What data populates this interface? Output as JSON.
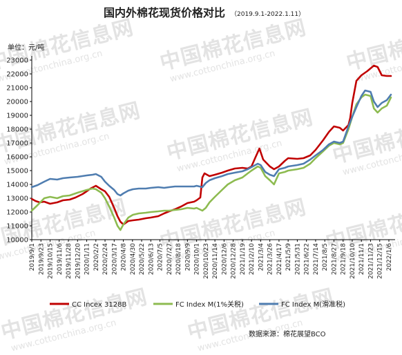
{
  "watermark": {
    "cn": "中国棉花信息网",
    "en": "www.cottonchina.org.cn"
  },
  "chart_data": {
    "type": "line",
    "title": "国内外棉花现货价格对比",
    "subtitle": "（2019.9.1-2022.1.11）",
    "unit_label": "单位：元/吨",
    "ylim": [
      10000,
      23000
    ],
    "y_ticks": [
      10000,
      11000,
      12000,
      13000,
      14000,
      15000,
      16000,
      17000,
      18000,
      19000,
      20000,
      21000,
      22000,
      23000
    ],
    "x_ticks": [
      "2019/9/1",
      "2019/9/23",
      "2019/10/15",
      "2019/11/6",
      "2019/11/28",
      "2019/12/20",
      "2020/1/11",
      "2020/2/2",
      "2020/2/24",
      "2020/3/17",
      "2020/4/8",
      "2020/4/30",
      "2020/5/22",
      "2020/6/13",
      "2020/7/5",
      "2020/7/27",
      "2020/8/18",
      "2020/9/9",
      "2020/10/1",
      "2020/10/23",
      "2020/11/14",
      "2020/12/6",
      "2020/12/28",
      "2021/1/19",
      "2021/2/10",
      "2021/3/4",
      "2021/3/26",
      "2021/4/17",
      "2021/5/9",
      "2021/5/31",
      "2021/6/22",
      "2021/7/14",
      "2021/8/5",
      "2021/8/27",
      "2021/9/18",
      "2021/10/10",
      "2021/11/1",
      "2021/11/23",
      "2021/12/15",
      "2022/1/6"
    ],
    "x_range": [
      "2019/9/1",
      "2022/1/11"
    ],
    "grid": false,
    "legend_position": "bottom",
    "series": [
      {
        "name": "CC Incex 3128B",
        "color": "#c00000",
        "points": [
          [
            "2019/9/1",
            12950
          ],
          [
            "2019/9/10",
            12800
          ],
          [
            "2019/9/20",
            12700
          ],
          [
            "2019/10/1",
            12750
          ],
          [
            "2019/10/15",
            12600
          ],
          [
            "2019/11/1",
            12700
          ],
          [
            "2019/11/15",
            12850
          ],
          [
            "2019/12/1",
            12900
          ],
          [
            "2019/12/15",
            13050
          ],
          [
            "2020/1/1",
            13300
          ],
          [
            "2020/1/11",
            13500
          ],
          [
            "2020/1/20",
            13700
          ],
          [
            "2020/2/2",
            13900
          ],
          [
            "2020/2/15",
            13650
          ],
          [
            "2020/2/24",
            13500
          ],
          [
            "2020/3/5",
            13100
          ],
          [
            "2020/3/17",
            12300
          ],
          [
            "2020/3/25",
            11700
          ],
          [
            "2020/4/1",
            11300
          ],
          [
            "2020/4/8",
            11100
          ],
          [
            "2020/4/20",
            11350
          ],
          [
            "2020/5/1",
            11400
          ],
          [
            "2020/5/15",
            11450
          ],
          [
            "2020/6/1",
            11550
          ],
          [
            "2020/6/13",
            11600
          ],
          [
            "2020/7/1",
            11700
          ],
          [
            "2020/7/15",
            11900
          ],
          [
            "2020/7/27",
            12050
          ],
          [
            "2020/8/10",
            12200
          ],
          [
            "2020/8/25",
            12400
          ],
          [
            "2020/9/9",
            12650
          ],
          [
            "2020/9/25",
            12750
          ],
          [
            "2020/10/1",
            12850
          ],
          [
            "2020/10/10",
            13050
          ],
          [
            "2020/10/15",
            14500
          ],
          [
            "2020/10/20",
            14800
          ],
          [
            "2020/11/1",
            14600
          ],
          [
            "2020/11/14",
            14700
          ],
          [
            "2020/12/1",
            14850
          ],
          [
            "2020/12/15",
            15000
          ],
          [
            "2021/1/1",
            15150
          ],
          [
            "2021/1/19",
            15200
          ],
          [
            "2021/2/1",
            15150
          ],
          [
            "2021/2/10",
            15300
          ],
          [
            "2021/2/20",
            16000
          ],
          [
            "2021/3/1",
            16600
          ],
          [
            "2021/3/10",
            15800
          ],
          [
            "2021/3/26",
            15300
          ],
          [
            "2021/4/5",
            15100
          ],
          [
            "2021/4/17",
            15300
          ],
          [
            "2021/5/1",
            15700
          ],
          [
            "2021/5/9",
            15900
          ],
          [
            "2021/5/31",
            15850
          ],
          [
            "2021/6/15",
            15900
          ],
          [
            "2021/7/1",
            16100
          ],
          [
            "2021/7/14",
            16500
          ],
          [
            "2021/8/1",
            17200
          ],
          [
            "2021/8/15",
            17800
          ],
          [
            "2021/8/27",
            18200
          ],
          [
            "2021/9/10",
            18100
          ],
          [
            "2021/9/18",
            17900
          ],
          [
            "2021/10/1",
            18300
          ],
          [
            "2021/10/5",
            18800
          ],
          [
            "2021/10/10",
            19900
          ],
          [
            "2021/10/20",
            21500
          ],
          [
            "2021/11/1",
            21900
          ],
          [
            "2021/11/15",
            22200
          ],
          [
            "2021/11/23",
            22400
          ],
          [
            "2021/12/1",
            22600
          ],
          [
            "2021/12/10",
            22500
          ],
          [
            "2021/12/20",
            21900
          ],
          [
            "2022/1/1",
            21850
          ],
          [
            "2022/1/11",
            21850
          ]
        ]
      },
      {
        "name": "FC Index M(1%关税)",
        "color": "#8dbb50",
        "points": [
          [
            "2019/9/1",
            12100
          ],
          [
            "2019/9/15",
            12500
          ],
          [
            "2019/10/1",
            13000
          ],
          [
            "2019/10/15",
            13100
          ],
          [
            "2019/11/1",
            13000
          ],
          [
            "2019/11/15",
            13150
          ],
          [
            "2019/12/1",
            13200
          ],
          [
            "2019/12/20",
            13400
          ],
          [
            "2020/1/11",
            13600
          ],
          [
            "2020/1/25",
            13700
          ],
          [
            "2020/2/2",
            13650
          ],
          [
            "2020/2/15",
            13400
          ],
          [
            "2020/2/24",
            13000
          ],
          [
            "2020/3/5",
            12400
          ],
          [
            "2020/3/17",
            11600
          ],
          [
            "2020/3/25",
            11000
          ],
          [
            "2020/4/1",
            10700
          ],
          [
            "2020/4/8",
            11100
          ],
          [
            "2020/4/20",
            11600
          ],
          [
            "2020/5/1",
            11800
          ],
          [
            "2020/5/15",
            11900
          ],
          [
            "2020/6/1",
            11950
          ],
          [
            "2020/6/13",
            12000
          ],
          [
            "2020/7/1",
            12050
          ],
          [
            "2020/7/15",
            12100
          ],
          [
            "2020/7/27",
            12100
          ],
          [
            "2020/8/10",
            12150
          ],
          [
            "2020/8/25",
            12200
          ],
          [
            "2020/9/9",
            12300
          ],
          [
            "2020/9/25",
            12250
          ],
          [
            "2020/10/1",
            12300
          ],
          [
            "2020/10/15",
            12100
          ],
          [
            "2020/10/23",
            12300
          ],
          [
            "2020/11/1",
            12700
          ],
          [
            "2020/11/14",
            13100
          ],
          [
            "2020/12/1",
            13600
          ],
          [
            "2020/12/15",
            14000
          ],
          [
            "2021/1/1",
            14300
          ],
          [
            "2021/1/19",
            14500
          ],
          [
            "2021/2/1",
            14800
          ],
          [
            "2021/2/10",
            15000
          ],
          [
            "2021/2/25",
            15300
          ],
          [
            "2021/3/4",
            15200
          ],
          [
            "2021/3/15",
            14600
          ],
          [
            "2021/3/26",
            14300
          ],
          [
            "2021/4/5",
            14000
          ],
          [
            "2021/4/17",
            14800
          ],
          [
            "2021/5/1",
            14900
          ],
          [
            "2021/5/9",
            15000
          ],
          [
            "2021/5/31",
            15100
          ],
          [
            "2021/6/15",
            15200
          ],
          [
            "2021/7/1",
            15500
          ],
          [
            "2021/7/14",
            15900
          ],
          [
            "2021/8/1",
            16400
          ],
          [
            "2021/8/15",
            16800
          ],
          [
            "2021/8/27",
            17000
          ],
          [
            "2021/9/10",
            16900
          ],
          [
            "2021/9/18",
            17000
          ],
          [
            "2021/10/1",
            18000
          ],
          [
            "2021/10/10",
            18900
          ],
          [
            "2021/10/20",
            19800
          ],
          [
            "2021/11/1",
            20300
          ],
          [
            "2021/11/10",
            20500
          ],
          [
            "2021/11/23",
            20400
          ],
          [
            "2021/12/1",
            19500
          ],
          [
            "2021/12/10",
            19200
          ],
          [
            "2021/12/20",
            19500
          ],
          [
            "2022/1/1",
            19700
          ],
          [
            "2022/1/11",
            20300
          ]
        ]
      },
      {
        "name": "FC Index M(滑准税)",
        "color": "#4f7db0",
        "points": [
          [
            "2019/9/1",
            13800
          ],
          [
            "2019/9/15",
            13950
          ],
          [
            "2019/10/1",
            14200
          ],
          [
            "2019/10/15",
            14400
          ],
          [
            "2019/11/1",
            14350
          ],
          [
            "2019/11/15",
            14450
          ],
          [
            "2019/12/1",
            14500
          ],
          [
            "2019/12/20",
            14550
          ],
          [
            "2020/1/11",
            14650
          ],
          [
            "2020/1/25",
            14700
          ],
          [
            "2020/2/2",
            14750
          ],
          [
            "2020/2/15",
            14550
          ],
          [
            "2020/2/24",
            14200
          ],
          [
            "2020/3/5",
            13900
          ],
          [
            "2020/3/17",
            13600
          ],
          [
            "2020/3/25",
            13300
          ],
          [
            "2020/4/1",
            13200
          ],
          [
            "2020/4/8",
            13350
          ],
          [
            "2020/4/20",
            13550
          ],
          [
            "2020/5/1",
            13650
          ],
          [
            "2020/5/15",
            13700
          ],
          [
            "2020/6/1",
            13700
          ],
          [
            "2020/6/13",
            13750
          ],
          [
            "2020/7/1",
            13800
          ],
          [
            "2020/7/15",
            13750
          ],
          [
            "2020/7/27",
            13800
          ],
          [
            "2020/8/10",
            13850
          ],
          [
            "2020/8/25",
            13850
          ],
          [
            "2020/9/9",
            13850
          ],
          [
            "2020/9/25",
            13850
          ],
          [
            "2020/10/1",
            13900
          ],
          [
            "2020/10/15",
            13800
          ],
          [
            "2020/10/23",
            14100
          ],
          [
            "2020/11/1",
            14300
          ],
          [
            "2020/11/14",
            14450
          ],
          [
            "2020/12/1",
            14600
          ],
          [
            "2020/12/15",
            14750
          ],
          [
            "2021/1/1",
            14850
          ],
          [
            "2021/1/19",
            14950
          ],
          [
            "2021/2/1",
            15100
          ],
          [
            "2021/2/10",
            15250
          ],
          [
            "2021/2/25",
            15500
          ],
          [
            "2021/3/4",
            15400
          ],
          [
            "2021/3/15",
            14900
          ],
          [
            "2021/3/26",
            14700
          ],
          [
            "2021/4/5",
            14600
          ],
          [
            "2021/4/17",
            15100
          ],
          [
            "2021/5/1",
            15200
          ],
          [
            "2021/5/9",
            15300
          ],
          [
            "2021/5/31",
            15400
          ],
          [
            "2021/6/15",
            15500
          ],
          [
            "2021/7/1",
            15800
          ],
          [
            "2021/7/14",
            16100
          ],
          [
            "2021/8/1",
            16500
          ],
          [
            "2021/8/15",
            16900
          ],
          [
            "2021/8/27",
            17100
          ],
          [
            "2021/9/10",
            17000
          ],
          [
            "2021/9/18",
            17100
          ],
          [
            "2021/10/1",
            18200
          ],
          [
            "2021/10/10",
            18900
          ],
          [
            "2021/10/20",
            19600
          ],
          [
            "2021/11/1",
            20400
          ],
          [
            "2021/11/10",
            20800
          ],
          [
            "2021/11/23",
            20700
          ],
          [
            "2021/12/1",
            20000
          ],
          [
            "2021/12/10",
            19600
          ],
          [
            "2021/12/20",
            19900
          ],
          [
            "2022/1/1",
            20100
          ],
          [
            "2022/1/11",
            20500
          ]
        ]
      }
    ],
    "source_note": "数据来源：棉花展望BCO"
  }
}
